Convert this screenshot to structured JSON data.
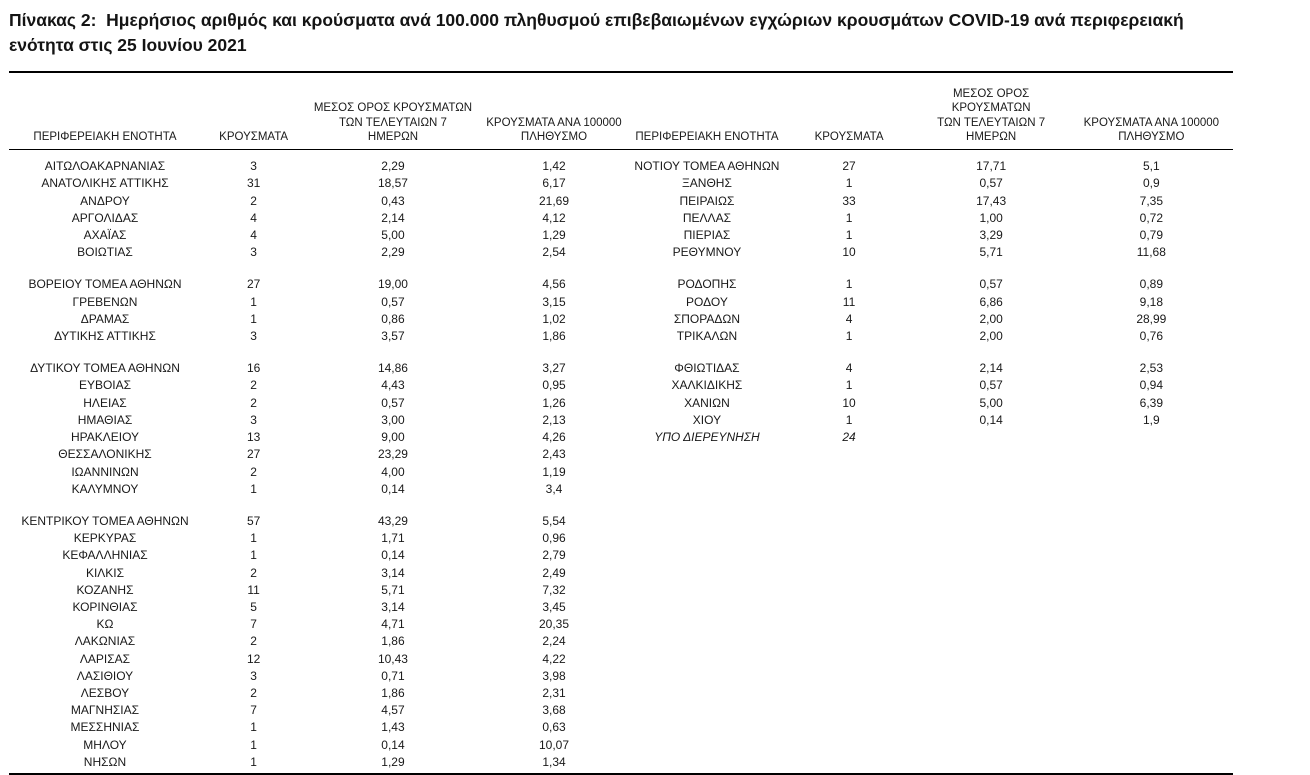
{
  "title": "Πίνακας 2:  Ημερήσιος αριθμός και κρούσματα ανά 100.000 πληθυσμού επιβεβαιωμένων εγχώριων κρουσμάτων COVID-19 ανά περιφερειακή ενότητα στις 25 Ιουνίου 2021",
  "columns": {
    "name": "ΠΕΡΙΦΕΡΕΙΑΚΗ ΕΝΟΤΗΤΑ",
    "cases": "ΚΡΟΥΣΜΑΤΑ",
    "avg_7d": "ΜΕΣΟΣ ΟΡΟΣ ΚΡΟΥΣΜΑΤΩΝ\nΤΩΝ ΤΕΛΕΥΤΑΙΩΝ 7\nΗΜΕΡΩΝ",
    "per_100k": "ΚΡΟΥΣΜΑΤΑ ΑΝΑ 100000\nΠΛΗΘΥΣΜΟ"
  },
  "tables": {
    "left": {
      "rows": [
        {
          "name": "ΑΙΤΩΛΟΑΚΑΡΝΑΝΙΑΣ",
          "cases": "3",
          "avg_7d": "2,29",
          "per_100k": "1,42"
        },
        {
          "name": "ΑΝΑΤΟΛΙΚΗΣ ΑΤΤΙΚΗΣ",
          "cases": "31",
          "avg_7d": "18,57",
          "per_100k": "6,17"
        },
        {
          "name": "ΑΝΔΡΟΥ",
          "cases": "2",
          "avg_7d": "0,43",
          "per_100k": "21,69"
        },
        {
          "name": "ΑΡΓΟΛΙΔΑΣ",
          "cases": "4",
          "avg_7d": "2,14",
          "per_100k": "4,12"
        },
        {
          "name": "ΑΧΑΪΑΣ",
          "cases": "4",
          "avg_7d": "5,00",
          "per_100k": "1,29"
        },
        {
          "name": "ΒΟΙΩΤΙΑΣ",
          "cases": "3",
          "avg_7d": "2,29",
          "per_100k": "2,54"
        },
        {
          "spacer": true
        },
        {
          "name": "ΒΟΡΕΙΟΥ ΤΟΜΕΑ ΑΘΗΝΩΝ",
          "cases": "27",
          "avg_7d": "19,00",
          "per_100k": "4,56"
        },
        {
          "name": "ΓΡΕΒΕΝΩΝ",
          "cases": "1",
          "avg_7d": "0,57",
          "per_100k": "3,15"
        },
        {
          "name": "ΔΡΑΜΑΣ",
          "cases": "1",
          "avg_7d": "0,86",
          "per_100k": "1,02"
        },
        {
          "name": "ΔΥΤΙΚΗΣ ΑΤΤΙΚΗΣ",
          "cases": "3",
          "avg_7d": "3,57",
          "per_100k": "1,86"
        },
        {
          "spacer": true
        },
        {
          "name": "ΔΥΤΙΚΟΥ ΤΟΜΕΑ ΑΘΗΝΩΝ",
          "cases": "16",
          "avg_7d": "14,86",
          "per_100k": "3,27"
        },
        {
          "name": "ΕΥΒΟΙΑΣ",
          "cases": "2",
          "avg_7d": "4,43",
          "per_100k": "0,95"
        },
        {
          "name": "ΗΛΕΙΑΣ",
          "cases": "2",
          "avg_7d": "0,57",
          "per_100k": "1,26"
        },
        {
          "name": "ΗΜΑΘΙΑΣ",
          "cases": "3",
          "avg_7d": "3,00",
          "per_100k": "2,13"
        },
        {
          "name": "ΗΡΑΚΛΕΙΟΥ",
          "cases": "13",
          "avg_7d": "9,00",
          "per_100k": "4,26"
        },
        {
          "name": "ΘΕΣΣΑΛΟΝΙΚΗΣ",
          "cases": "27",
          "avg_7d": "23,29",
          "per_100k": "2,43"
        },
        {
          "name": "ΙΩΑΝΝΙΝΩΝ",
          "cases": "2",
          "avg_7d": "4,00",
          "per_100k": "1,19"
        },
        {
          "name": "ΚΑΛΥΜΝΟΥ",
          "cases": "1",
          "avg_7d": "0,14",
          "per_100k": "3,4"
        },
        {
          "spacer": true
        },
        {
          "name": "ΚΕΝΤΡΙΚΟΥ ΤΟΜΕΑ ΑΘΗΝΩΝ",
          "cases": "57",
          "avg_7d": "43,29",
          "per_100k": "5,54"
        },
        {
          "name": "ΚΕΡΚΥΡΑΣ",
          "cases": "1",
          "avg_7d": "1,71",
          "per_100k": "0,96"
        },
        {
          "name": "ΚΕΦΑΛΛΗΝΙΑΣ",
          "cases": "1",
          "avg_7d": "0,14",
          "per_100k": "2,79"
        },
        {
          "name": "ΚΙΛΚΙΣ",
          "cases": "2",
          "avg_7d": "3,14",
          "per_100k": "2,49"
        },
        {
          "name": "ΚΟΖΑΝΗΣ",
          "cases": "11",
          "avg_7d": "5,71",
          "per_100k": "7,32"
        },
        {
          "name": "ΚΟΡΙΝΘΙΑΣ",
          "cases": "5",
          "avg_7d": "3,14",
          "per_100k": "3,45"
        },
        {
          "name": "ΚΩ",
          "cases": "7",
          "avg_7d": "4,71",
          "per_100k": "20,35"
        },
        {
          "name": "ΛΑΚΩΝΙΑΣ",
          "cases": "2",
          "avg_7d": "1,86",
          "per_100k": "2,24"
        },
        {
          "name": "ΛΑΡΙΣΑΣ",
          "cases": "12",
          "avg_7d": "10,43",
          "per_100k": "4,22"
        },
        {
          "name": "ΛΑΣΙΘΙΟΥ",
          "cases": "3",
          "avg_7d": "0,71",
          "per_100k": "3,98"
        },
        {
          "name": "ΛΕΣΒΟΥ",
          "cases": "2",
          "avg_7d": "1,86",
          "per_100k": "2,31"
        },
        {
          "name": "ΜΑΓΝΗΣΙΑΣ",
          "cases": "7",
          "avg_7d": "4,57",
          "per_100k": "3,68"
        },
        {
          "name": "ΜΕΣΣΗΝΙΑΣ",
          "cases": "1",
          "avg_7d": "1,43",
          "per_100k": "0,63"
        },
        {
          "name": "ΜΗΛΟΥ",
          "cases": "1",
          "avg_7d": "0,14",
          "per_100k": "10,07"
        },
        {
          "name": "ΝΗΣΩΝ",
          "cases": "1",
          "avg_7d": "1,29",
          "per_100k": "1,34"
        }
      ]
    },
    "right": {
      "rows": [
        {
          "name": "ΝΟΤΙΟΥ ΤΟΜΕΑ ΑΘΗΝΩΝ",
          "cases": "27",
          "avg_7d": "17,71",
          "per_100k": "5,1"
        },
        {
          "name": "ΞΑΝΘΗΣ",
          "cases": "1",
          "avg_7d": "0,57",
          "per_100k": "0,9"
        },
        {
          "name": "ΠΕΙΡΑΙΩΣ",
          "cases": "33",
          "avg_7d": "17,43",
          "per_100k": "7,35"
        },
        {
          "name": "ΠΕΛΛΑΣ",
          "cases": "1",
          "avg_7d": "1,00",
          "per_100k": "0,72"
        },
        {
          "name": "ΠΙΕΡΙΑΣ",
          "cases": "1",
          "avg_7d": "3,29",
          "per_100k": "0,79"
        },
        {
          "name": "ΡΕΘΥΜΝΟΥ",
          "cases": "10",
          "avg_7d": "5,71",
          "per_100k": "11,68"
        },
        {
          "spacer": true
        },
        {
          "name": "ΡΟΔΟΠΗΣ",
          "cases": "1",
          "avg_7d": "0,57",
          "per_100k": "0,89"
        },
        {
          "name": "ΡΟΔΟΥ",
          "cases": "11",
          "avg_7d": "6,86",
          "per_100k": "9,18"
        },
        {
          "name": "ΣΠΟΡΑΔΩΝ",
          "cases": "4",
          "avg_7d": "2,00",
          "per_100k": "28,99"
        },
        {
          "name": "ΤΡΙΚΑΛΩΝ",
          "cases": "1",
          "avg_7d": "2,00",
          "per_100k": "0,76"
        },
        {
          "spacer": true
        },
        {
          "name": "ΦΘΙΩΤΙΔΑΣ",
          "cases": "4",
          "avg_7d": "2,14",
          "per_100k": "2,53"
        },
        {
          "name": "ΧΑΛΚΙΔΙΚΗΣ",
          "cases": "1",
          "avg_7d": "0,57",
          "per_100k": "0,94"
        },
        {
          "name": "ΧΑΝΙΩΝ",
          "cases": "10",
          "avg_7d": "5,00",
          "per_100k": "6,39"
        },
        {
          "name": "ΧΙΟΥ",
          "cases": "1",
          "avg_7d": "0,14",
          "per_100k": "1,9"
        },
        {
          "name": "ΥΠΟ ΔΙΕΡΕΥΝΗΣΗ",
          "cases": "24",
          "avg_7d": "",
          "per_100k": "",
          "italic": true
        }
      ]
    }
  }
}
